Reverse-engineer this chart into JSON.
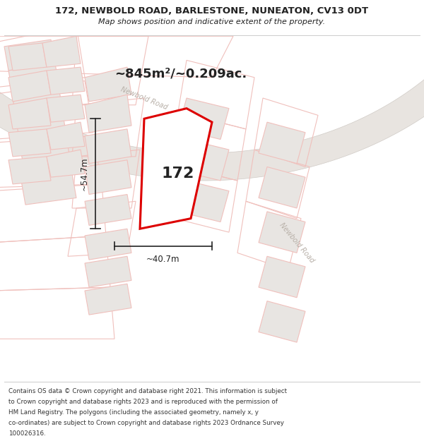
{
  "title": "172, NEWBOLD ROAD, BARLESTONE, NUNEATON, CV13 0DT",
  "subtitle": "Map shows position and indicative extent of the property.",
  "area_text": "~845m²/~0.209ac.",
  "house_number": "172",
  "dim_width": "~40.7m",
  "dim_height": "~54.7m",
  "road_label_upper": "Newbold Road",
  "road_label_lower": "Newbold Road",
  "footer_lines": [
    "Contains OS data © Crown copyright and database right 2021. This information is subject",
    "to Crown copyright and database rights 2023 and is reproduced with the permission of",
    "HM Land Registry. The polygons (including the associated geometry, namely x, y",
    "co-ordinates) are subject to Crown copyright and database rights 2023 Ordnance Survey",
    "100026316."
  ],
  "bg_color": "#ffffff",
  "map_bg_color": "#ffffff",
  "road_band_color": "#e8e4e0",
  "building_fill": "#e8e5e2",
  "building_edge": "#f0c0bc",
  "highlight_fill": "#ffffff",
  "highlight_edge": "#dd0000",
  "dim_line_color": "#222222",
  "road_text_color": "#b8b0a8",
  "title_color": "#222222",
  "footer_color": "#333333",
  "title_fontsize": 9.5,
  "subtitle_fontsize": 8.0,
  "area_fontsize": 13,
  "house_fontsize": 16,
  "dim_fontsize": 8.5,
  "road_fontsize": 7,
  "footer_fontsize": 6.3
}
